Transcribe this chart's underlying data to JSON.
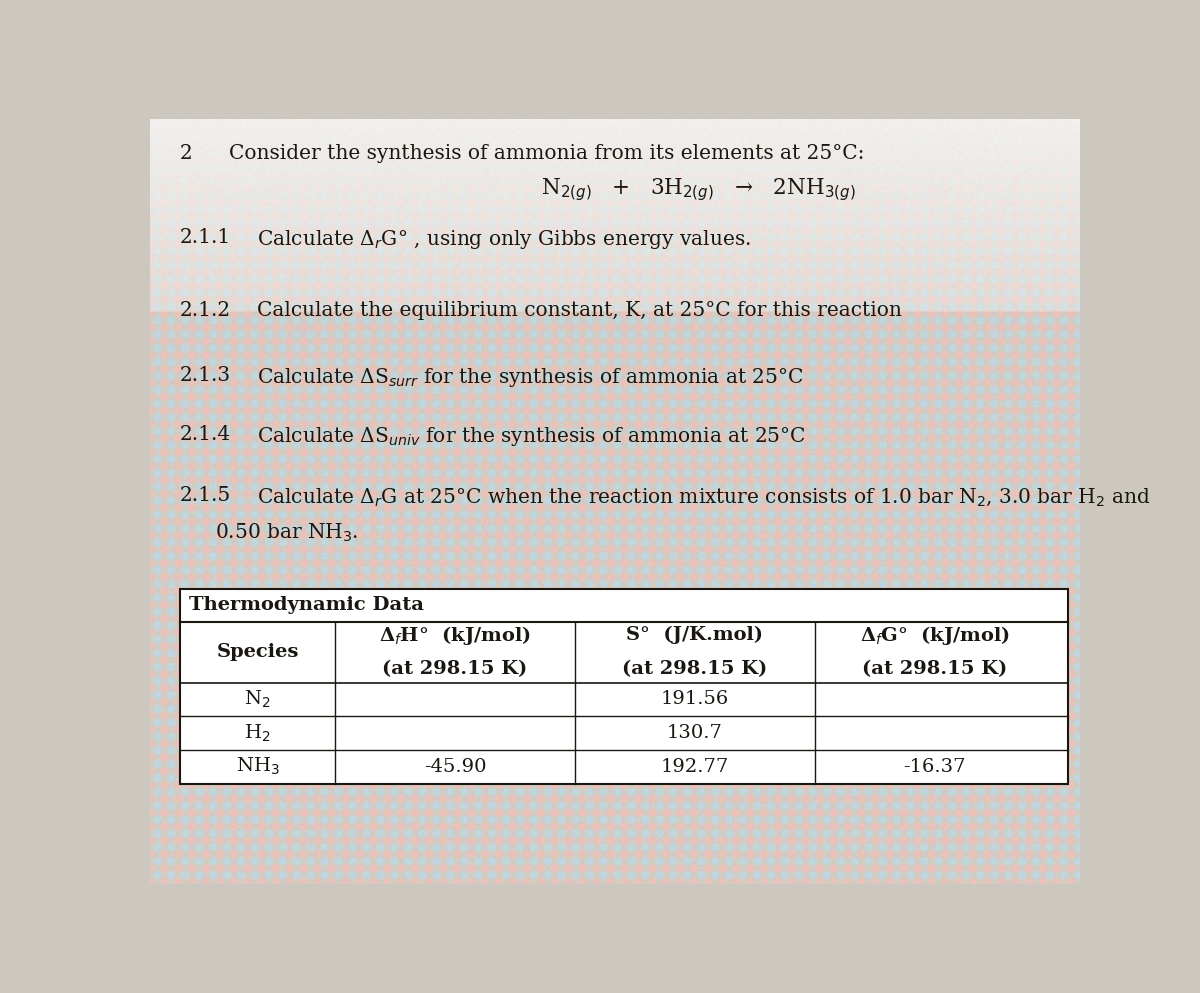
{
  "bg_color_top": "#e8e4e0",
  "bg_color": "#d4ccc4",
  "text_color": "#1a1710",
  "fig_width": 12.0,
  "fig_height": 9.93,
  "question_number": "2",
  "intro_text": "Consider the synthesis of ammonia from its elements at 25°C:",
  "reaction": "N$_{2(g)}$   +   3H$_{2(g)}$   →   2NH$_{3(g)}$",
  "q211_num": "2.1.1",
  "q211_text": "Calculate Δ$_r$G° , using only Gibbs energy values.",
  "q212_num": "2.1.2",
  "q212_text": "Calculate the equilibrium constant, K, at 25°C for this reaction",
  "q213_num": "2.1.3",
  "q213_text": "Calculate ΔS$_{surr}$ for the synthesis of ammonia at 25°C",
  "q214_num": "2.1.4",
  "q214_text": "Calculate ΔS$_{univ}$ for the synthesis of ammonia at 25°C",
  "q215_num": "2.1.5",
  "q215_text1": "Calculate Δ$_r$G at 25°C when the reaction mixture consists of 1.0 bar N$_2$, 3.0 bar H$_2$ and",
  "q215_text2": "0.50 bar NH$_3$.",
  "table_title": "Thermodynamic Data",
  "col0_header": "Species",
  "col1_header1": "Δ$_f$H°  (kJ/mol)",
  "col1_header2": "(at 298.15 K)",
  "col2_header1": "S°  (J/K.mol)",
  "col2_header2": "(at 298.15 K)",
  "col3_header1": "Δ$_f$G°  (kJ/mol)",
  "col3_header2": "(at 298.15 K)",
  "r0c0": "N$_2$",
  "r0c1": "",
  "r0c2": "191.56",
  "r0c3": "",
  "r1c0": "H$_2$",
  "r1c1": "",
  "r1c2": "130.7",
  "r1c3": "",
  "r2c0": "NH$_3$",
  "r2c1": "-45.90",
  "r2c2": "192.77",
  "r2c3": "-16.37"
}
